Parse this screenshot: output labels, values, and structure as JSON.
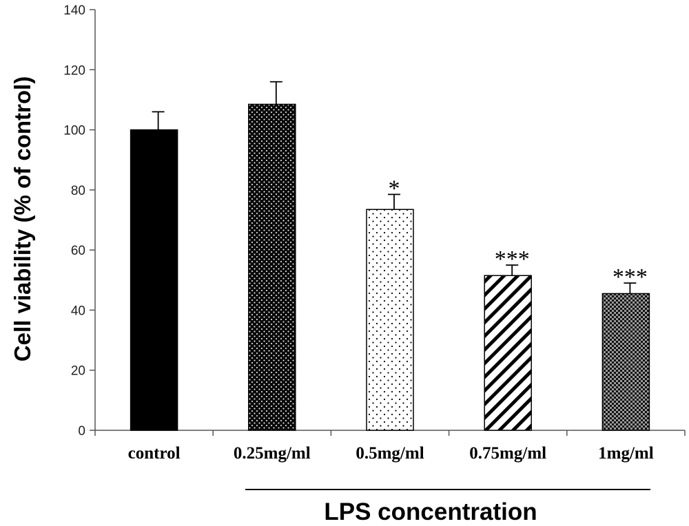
{
  "chart_data": {
    "type": "bar",
    "title": "",
    "xlabel": "LPS concentration",
    "ylabel": "Cell viability (% of control)",
    "ylim": [
      0,
      140
    ],
    "yticks": [
      0,
      20,
      40,
      60,
      80,
      100,
      120,
      140
    ],
    "grid": false,
    "legend": "none",
    "categories": [
      "control",
      "0.25mg/ml",
      "0.5mg/ml",
      "0.75mg/ml",
      "1mg/ml"
    ],
    "values": [
      100,
      108.5,
      73.5,
      51.5,
      45.5
    ],
    "error": [
      6,
      7.5,
      5,
      3.5,
      3.5
    ],
    "significance": [
      "",
      "",
      "*",
      "***",
      "***"
    ],
    "bar_patterns": [
      "solid-black",
      "dense-dots",
      "sparse-dots",
      "diagonal-stripes",
      "checker"
    ]
  }
}
